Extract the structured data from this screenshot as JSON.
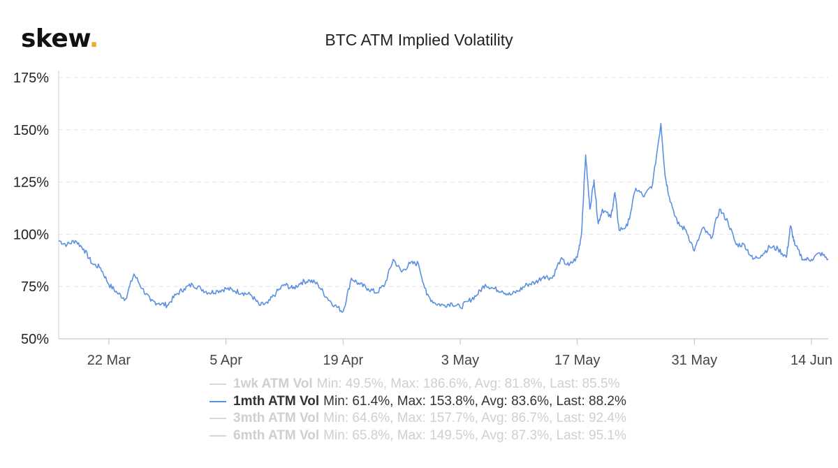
{
  "brand": {
    "name": "skew",
    "dot": ".",
    "dot_color": "#f0a830"
  },
  "chart_data": {
    "type": "line",
    "title": "BTC ATM Implied Volatility",
    "xlabel": "",
    "ylabel": "",
    "y_ticks": [
      "50%",
      "75%",
      "100%",
      "125%",
      "150%",
      "175%"
    ],
    "ylim": [
      50,
      175
    ],
    "x_range": [
      "2020-03-16",
      "2020-06-16"
    ],
    "x_ticks": [
      {
        "date": "2020-03-22",
        "label": "22 Mar"
      },
      {
        "date": "2020-04-05",
        "label": "5 Apr"
      },
      {
        "date": "2020-04-19",
        "label": "19 Apr"
      },
      {
        "date": "2020-05-03",
        "label": "3 May"
      },
      {
        "date": "2020-05-17",
        "label": "17 May"
      },
      {
        "date": "2020-05-31",
        "label": "31 May"
      },
      {
        "date": "2020-06-14",
        "label": "14 Jun"
      }
    ],
    "grid": true,
    "legend_position": "bottom",
    "line_color": "#5b8fe0",
    "series": [
      {
        "name": "1mth ATM Vol",
        "points": [
          [
            "2020-03-16",
            97
          ],
          [
            "2020-03-17",
            95
          ],
          [
            "2020-03-18",
            97
          ],
          [
            "2020-03-19",
            93
          ],
          [
            "2020-03-20",
            86
          ],
          [
            "2020-03-21",
            84
          ],
          [
            "2020-03-22",
            76
          ],
          [
            "2020-03-23",
            72
          ],
          [
            "2020-03-24",
            69
          ],
          [
            "2020-03-25",
            81
          ],
          [
            "2020-03-26",
            74
          ],
          [
            "2020-03-27",
            68
          ],
          [
            "2020-03-28",
            67
          ],
          [
            "2020-03-29",
            66
          ],
          [
            "2020-03-30",
            71
          ],
          [
            "2020-03-31",
            74
          ],
          [
            "2020-04-01",
            76
          ],
          [
            "2020-04-02",
            74
          ],
          [
            "2020-04-03",
            72
          ],
          [
            "2020-04-04",
            73
          ],
          [
            "2020-04-05",
            74
          ],
          [
            "2020-04-06",
            73
          ],
          [
            "2020-04-07",
            72
          ],
          [
            "2020-04-08",
            71
          ],
          [
            "2020-04-09",
            66
          ],
          [
            "2020-04-10",
            67
          ],
          [
            "2020-04-11",
            72
          ],
          [
            "2020-04-12",
            76
          ],
          [
            "2020-04-13",
            74
          ],
          [
            "2020-04-14",
            77
          ],
          [
            "2020-04-15",
            78
          ],
          [
            "2020-04-16",
            76
          ],
          [
            "2020-04-17",
            70
          ],
          [
            "2020-04-18",
            66
          ],
          [
            "2020-04-19",
            63
          ],
          [
            "2020-04-20",
            79
          ],
          [
            "2020-04-21",
            76
          ],
          [
            "2020-04-22",
            74
          ],
          [
            "2020-04-23",
            72
          ],
          [
            "2020-04-24",
            76
          ],
          [
            "2020-04-25",
            88
          ],
          [
            "2020-04-26",
            82
          ],
          [
            "2020-04-27",
            86
          ],
          [
            "2020-04-28",
            86
          ],
          [
            "2020-04-29",
            71
          ],
          [
            "2020-04-30",
            67
          ],
          [
            "2020-05-01",
            66
          ],
          [
            "2020-05-02",
            67
          ],
          [
            "2020-05-03",
            65
          ],
          [
            "2020-05-04",
            68
          ],
          [
            "2020-05-05",
            71
          ],
          [
            "2020-05-06",
            76
          ],
          [
            "2020-05-07",
            74
          ],
          [
            "2020-05-08",
            73
          ],
          [
            "2020-05-09",
            71
          ],
          [
            "2020-05-10",
            73
          ],
          [
            "2020-05-11",
            76
          ],
          [
            "2020-05-12",
            77
          ],
          [
            "2020-05-13",
            80
          ],
          [
            "2020-05-14",
            79
          ],
          [
            "2020-05-15",
            88
          ],
          [
            "2020-05-16",
            85
          ],
          [
            "2020-05-17",
            89
          ],
          [
            "2020-05-17T12",
            100
          ],
          [
            "2020-05-18",
            138
          ],
          [
            "2020-05-18T12",
            112
          ],
          [
            "2020-05-19",
            126
          ],
          [
            "2020-05-19T12",
            105
          ],
          [
            "2020-05-20",
            112
          ],
          [
            "2020-05-21",
            108
          ],
          [
            "2020-05-21T12",
            120
          ],
          [
            "2020-05-22",
            102
          ],
          [
            "2020-05-23",
            104
          ],
          [
            "2020-05-24",
            122
          ],
          [
            "2020-05-25",
            118
          ],
          [
            "2020-05-26",
            124
          ],
          [
            "2020-05-27",
            153
          ],
          [
            "2020-05-27T12",
            128
          ],
          [
            "2020-05-28",
            118
          ],
          [
            "2020-05-29",
            105
          ],
          [
            "2020-05-30",
            102
          ],
          [
            "2020-05-31",
            92
          ],
          [
            "2020-06-01",
            103
          ],
          [
            "2020-06-02",
            98
          ],
          [
            "2020-06-03",
            112
          ],
          [
            "2020-06-04",
            106
          ],
          [
            "2020-06-05",
            95
          ],
          [
            "2020-06-06",
            95
          ],
          [
            "2020-06-07",
            88
          ],
          [
            "2020-06-08",
            90
          ],
          [
            "2020-06-09",
            94
          ],
          [
            "2020-06-10",
            93
          ],
          [
            "2020-06-11",
            89
          ],
          [
            "2020-06-11T12",
            104
          ],
          [
            "2020-06-12",
            95
          ],
          [
            "2020-06-13",
            88
          ],
          [
            "2020-06-14",
            88
          ],
          [
            "2020-06-15",
            91
          ],
          [
            "2020-06-16",
            88.2
          ]
        ]
      }
    ]
  },
  "legend": [
    {
      "name": "1wk ATM Vol",
      "stats": "Min: 49.5%, Max: 186.6%, Avg: 81.8%, Last: 85.5%",
      "active": false
    },
    {
      "name": "1mth ATM Vol",
      "stats": "Min: 61.4%, Max: 153.8%, Avg: 83.6%, Last: 88.2%",
      "active": true
    },
    {
      "name": "3mth ATM Vol",
      "stats": "Min: 64.6%, Max: 157.7%, Avg: 86.7%, Last: 92.4%",
      "active": false
    },
    {
      "name": "6mth ATM Vol",
      "stats": "Min: 65.8%, Max: 149.5%, Avg: 87.3%, Last: 95.1%",
      "active": false
    }
  ]
}
